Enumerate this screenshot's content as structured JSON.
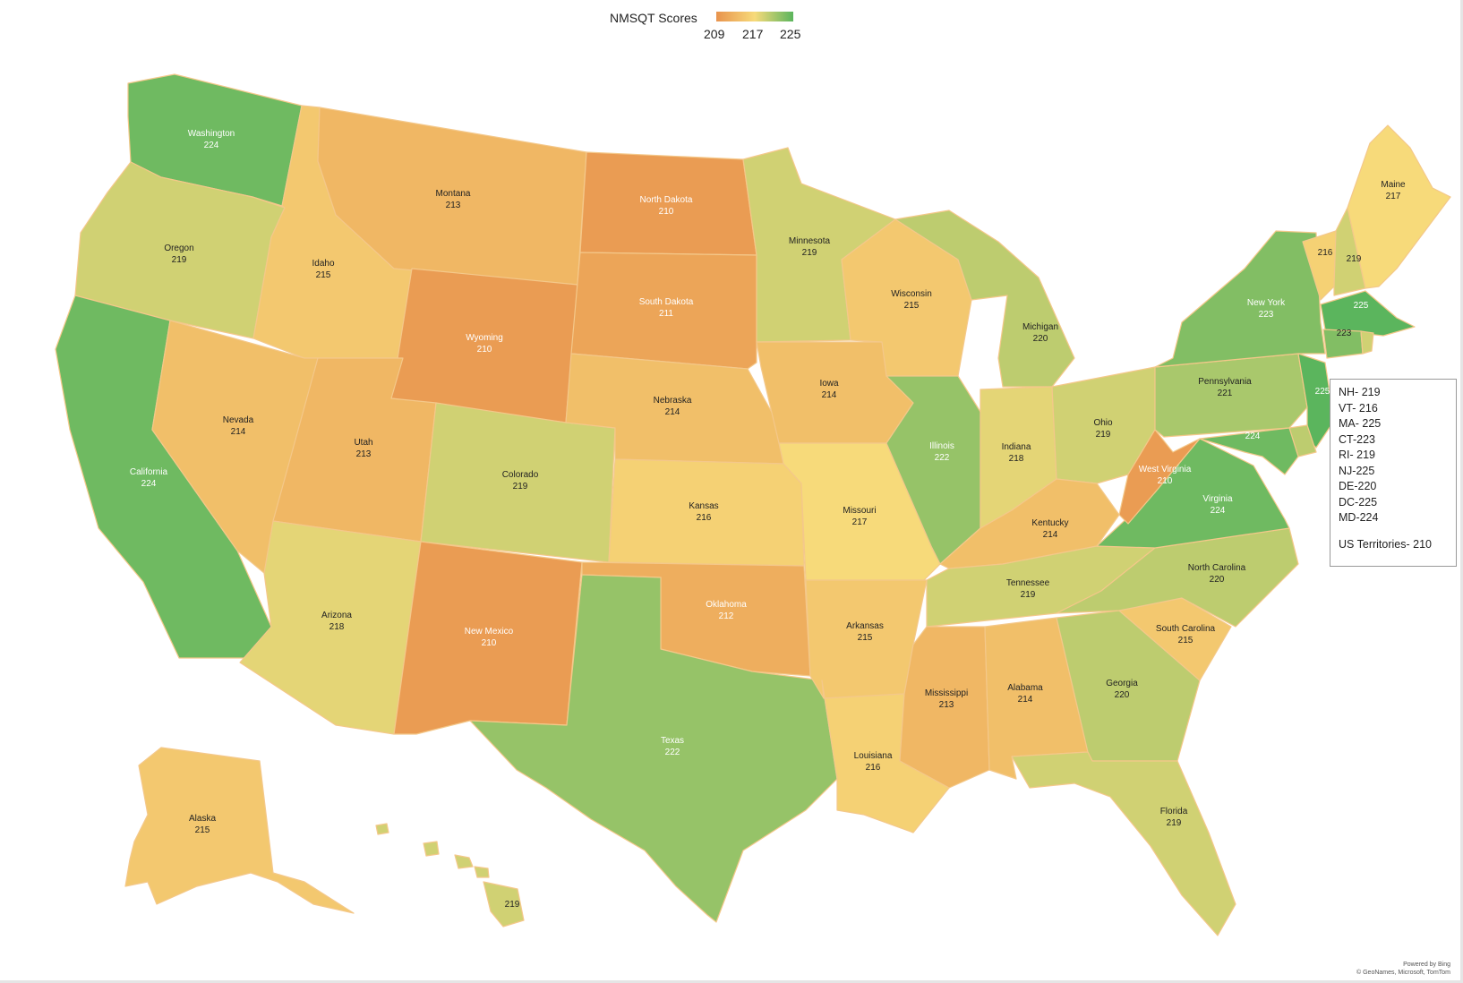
{
  "legend": {
    "title": "NMSQT Scores",
    "ticks": [
      "209",
      "217",
      "225"
    ],
    "min": 209,
    "mid": 217,
    "max": 225
  },
  "colors": {
    "low": "#e8934d",
    "mid": "#f7da7a",
    "high": "#5bb55d",
    "border": "#f4c88a"
  },
  "states": [
    {
      "name": "Washington",
      "score": 224
    },
    {
      "name": "Oregon",
      "score": 219
    },
    {
      "name": "California",
      "score": 224
    },
    {
      "name": "Idaho",
      "score": 215
    },
    {
      "name": "Nevada",
      "score": 214
    },
    {
      "name": "Montana",
      "score": 213
    },
    {
      "name": "Wyoming",
      "score": 210
    },
    {
      "name": "Utah",
      "score": 213
    },
    {
      "name": "Arizona",
      "score": 218
    },
    {
      "name": "Colorado",
      "score": 219
    },
    {
      "name": "New Mexico",
      "score": 210
    },
    {
      "name": "North Dakota",
      "score": 210
    },
    {
      "name": "South Dakota",
      "score": 211
    },
    {
      "name": "Nebraska",
      "score": 214
    },
    {
      "name": "Kansas",
      "score": 216
    },
    {
      "name": "Oklahoma",
      "score": 212
    },
    {
      "name": "Texas",
      "score": 222
    },
    {
      "name": "Minnesota",
      "score": 219
    },
    {
      "name": "Iowa",
      "score": 214
    },
    {
      "name": "Missouri",
      "score": 217
    },
    {
      "name": "Arkansas",
      "score": 215
    },
    {
      "name": "Louisiana",
      "score": 216
    },
    {
      "name": "Wisconsin",
      "score": 215
    },
    {
      "name": "Illinois",
      "score": 222
    },
    {
      "name": "Michigan",
      "score": 220
    },
    {
      "name": "Indiana",
      "score": 218
    },
    {
      "name": "Ohio",
      "score": 219
    },
    {
      "name": "Kentucky",
      "score": 214
    },
    {
      "name": "Tennessee",
      "score": 219
    },
    {
      "name": "Mississippi",
      "score": 213
    },
    {
      "name": "Alabama",
      "score": 214
    },
    {
      "name": "Georgia",
      "score": 220
    },
    {
      "name": "Florida",
      "score": 219
    },
    {
      "name": "South Carolina",
      "score": 215
    },
    {
      "name": "North Carolina",
      "score": 220
    },
    {
      "name": "Virginia",
      "score": 224
    },
    {
      "name": "West Virginia",
      "score": 210
    },
    {
      "name": "Pennsylvania",
      "score": 221
    },
    {
      "name": "New York",
      "score": 223
    },
    {
      "name": "Maine",
      "score": 217
    },
    {
      "name": "Alaska",
      "score": 215
    }
  ],
  "small_labels": [
    {
      "id": "VT",
      "value": "216"
    },
    {
      "id": "NH",
      "value": "219"
    },
    {
      "id": "MA",
      "value": "225"
    },
    {
      "id": "CT",
      "value": "223"
    },
    {
      "id": "NJ",
      "value": "225"
    },
    {
      "id": "MD",
      "value": "224"
    },
    {
      "id": "HI",
      "value": "219"
    }
  ],
  "notes": [
    "NH- 219",
    "VT- 216",
    "MA- 225",
    "CT-223",
    "RI- 219",
    "NJ-225",
    "DE-220",
    "DC-225",
    "MD-224"
  ],
  "territories": "US Territories- 210",
  "credits": [
    "Powered by Bing",
    "© GeoNames, Microsoft, TomTom"
  ]
}
